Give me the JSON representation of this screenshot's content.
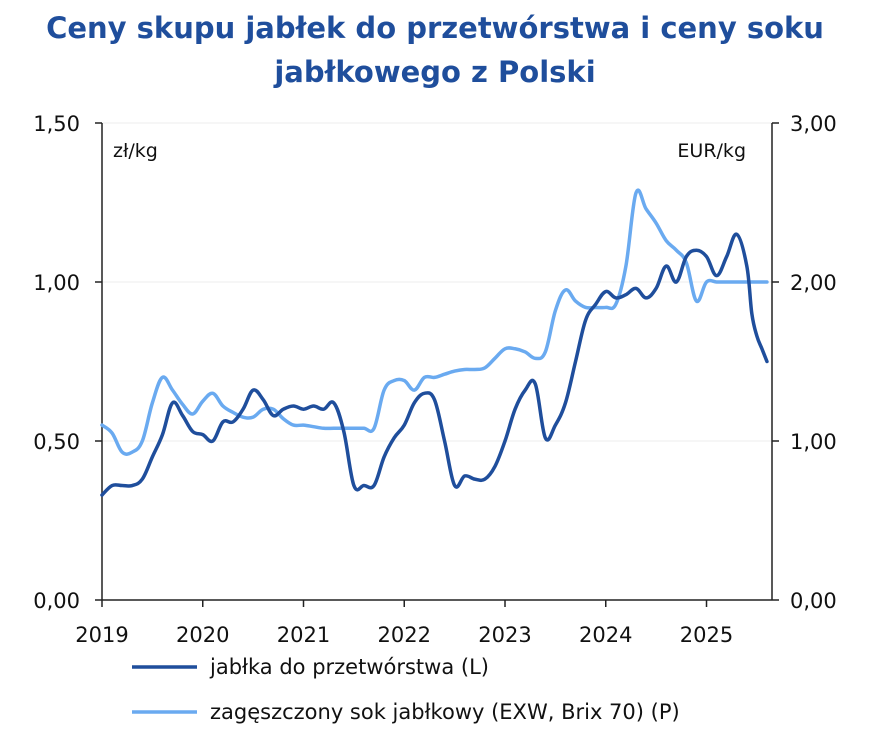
{
  "title": {
    "line1": "Ceny skupu jabłek do przetwórstwa i ceny soku",
    "line2": "jabłkowego z Polski"
  },
  "colors": {
    "title": "#1f4e9c",
    "series_left": "#1f4e9c",
    "series_right": "#6aaaf0",
    "axis": "#222222",
    "grid": "#eeeeee"
  },
  "chart_data": {
    "type": "line",
    "title": "Ceny skupu jabłek do przetwórstwa i ceny soku jabłkowego z Polski",
    "x_ticks": [
      "2019",
      "2020",
      "2021",
      "2022",
      "2023",
      "2024",
      "2025"
    ],
    "xlim": [
      2019,
      2025.65
    ],
    "left_axis": {
      "unit": "zł/kg",
      "ylim": [
        0,
        1.5
      ],
      "ticks": [
        "0,00",
        "0,50",
        "1,00",
        "1,50"
      ],
      "tick_values": [
        0,
        0.5,
        1.0,
        1.5
      ]
    },
    "right_axis": {
      "unit": "EUR/kg",
      "ylim": [
        0,
        3.0
      ],
      "ticks": [
        "0,00",
        "1,00",
        "2,00",
        "3,00"
      ],
      "tick_values": [
        0,
        1.0,
        2.0,
        3.0
      ]
    },
    "grid": true,
    "legend_position": "bottom",
    "series": [
      {
        "name": "jabłka do przetwórstwa (L)",
        "axis": "left",
        "x": [
          2019.0,
          2019.1,
          2019.2,
          2019.3,
          2019.4,
          2019.5,
          2019.6,
          2019.7,
          2019.8,
          2019.9,
          2020.0,
          2020.1,
          2020.2,
          2020.3,
          2020.4,
          2020.5,
          2020.6,
          2020.7,
          2020.8,
          2020.9,
          2021.0,
          2021.1,
          2021.2,
          2021.3,
          2021.4,
          2021.5,
          2021.6,
          2021.7,
          2021.8,
          2021.9,
          2022.0,
          2022.1,
          2022.2,
          2022.3,
          2022.4,
          2022.5,
          2022.6,
          2022.7,
          2022.8,
          2022.9,
          2023.0,
          2023.1,
          2023.2,
          2023.3,
          2023.4,
          2023.5,
          2023.6,
          2023.7,
          2023.8,
          2023.9,
          2024.0,
          2024.1,
          2024.2,
          2024.3,
          2024.4,
          2024.5,
          2024.6,
          2024.7,
          2024.8,
          2024.9,
          2025.0,
          2025.1,
          2025.2,
          2025.3,
          2025.4,
          2025.45,
          2025.5,
          2025.55,
          2025.6
        ],
        "values": [
          0.33,
          0.36,
          0.36,
          0.36,
          0.38,
          0.45,
          0.52,
          0.62,
          0.58,
          0.53,
          0.52,
          0.5,
          0.56,
          0.56,
          0.6,
          0.66,
          0.63,
          0.58,
          0.6,
          0.61,
          0.6,
          0.61,
          0.6,
          0.62,
          0.53,
          0.36,
          0.36,
          0.36,
          0.45,
          0.51,
          0.55,
          0.62,
          0.65,
          0.63,
          0.5,
          0.36,
          0.39,
          0.38,
          0.38,
          0.42,
          0.5,
          0.6,
          0.66,
          0.68,
          0.51,
          0.55,
          0.62,
          0.75,
          0.88,
          0.93,
          0.97,
          0.95,
          0.96,
          0.98,
          0.95,
          0.98,
          1.05,
          1.0,
          1.08,
          1.1,
          1.08,
          1.02,
          1.08,
          1.15,
          1.05,
          0.9,
          0.83,
          0.79,
          0.75
        ]
      },
      {
        "name": "zagęszczony sok jabłkowy (EXW, Brix 70) (P)",
        "axis": "right",
        "x": [
          2019.0,
          2019.1,
          2019.2,
          2019.3,
          2019.4,
          2019.5,
          2019.6,
          2019.7,
          2019.8,
          2019.9,
          2020.0,
          2020.1,
          2020.2,
          2020.3,
          2020.4,
          2020.5,
          2020.6,
          2020.7,
          2020.8,
          2020.9,
          2021.0,
          2021.1,
          2021.2,
          2021.3,
          2021.4,
          2021.5,
          2021.6,
          2021.7,
          2021.8,
          2021.9,
          2022.0,
          2022.1,
          2022.2,
          2022.3,
          2022.4,
          2022.5,
          2022.6,
          2022.7,
          2022.8,
          2022.9,
          2023.0,
          2023.1,
          2023.2,
          2023.3,
          2023.4,
          2023.5,
          2023.6,
          2023.7,
          2023.8,
          2023.9,
          2024.0,
          2024.1,
          2024.2,
          2024.3,
          2024.4,
          2024.5,
          2024.6,
          2024.7,
          2024.8,
          2024.9,
          2025.0,
          2025.1,
          2025.2,
          2025.3,
          2025.4,
          2025.5,
          2025.6
        ],
        "values": [
          1.1,
          1.05,
          0.93,
          0.93,
          1.0,
          1.24,
          1.4,
          1.32,
          1.23,
          1.17,
          1.25,
          1.3,
          1.22,
          1.18,
          1.15,
          1.15,
          1.2,
          1.2,
          1.14,
          1.1,
          1.1,
          1.09,
          1.08,
          1.08,
          1.08,
          1.08,
          1.08,
          1.08,
          1.32,
          1.38,
          1.38,
          1.32,
          1.4,
          1.4,
          1.42,
          1.44,
          1.45,
          1.45,
          1.46,
          1.52,
          1.58,
          1.58,
          1.56,
          1.52,
          1.56,
          1.82,
          1.95,
          1.88,
          1.84,
          1.84,
          1.84,
          1.86,
          2.1,
          2.56,
          2.46,
          2.37,
          2.26,
          2.2,
          2.12,
          1.88,
          2.0,
          2.0,
          2.0,
          2.0,
          2.0,
          2.0,
          2.0
        ]
      }
    ]
  },
  "legend": {
    "items": [
      {
        "label": "jabłka do przetwórstwa (L)"
      },
      {
        "label": "zagęszczony sok jabłkowy (EXW, Brix 70) (P)"
      }
    ]
  }
}
